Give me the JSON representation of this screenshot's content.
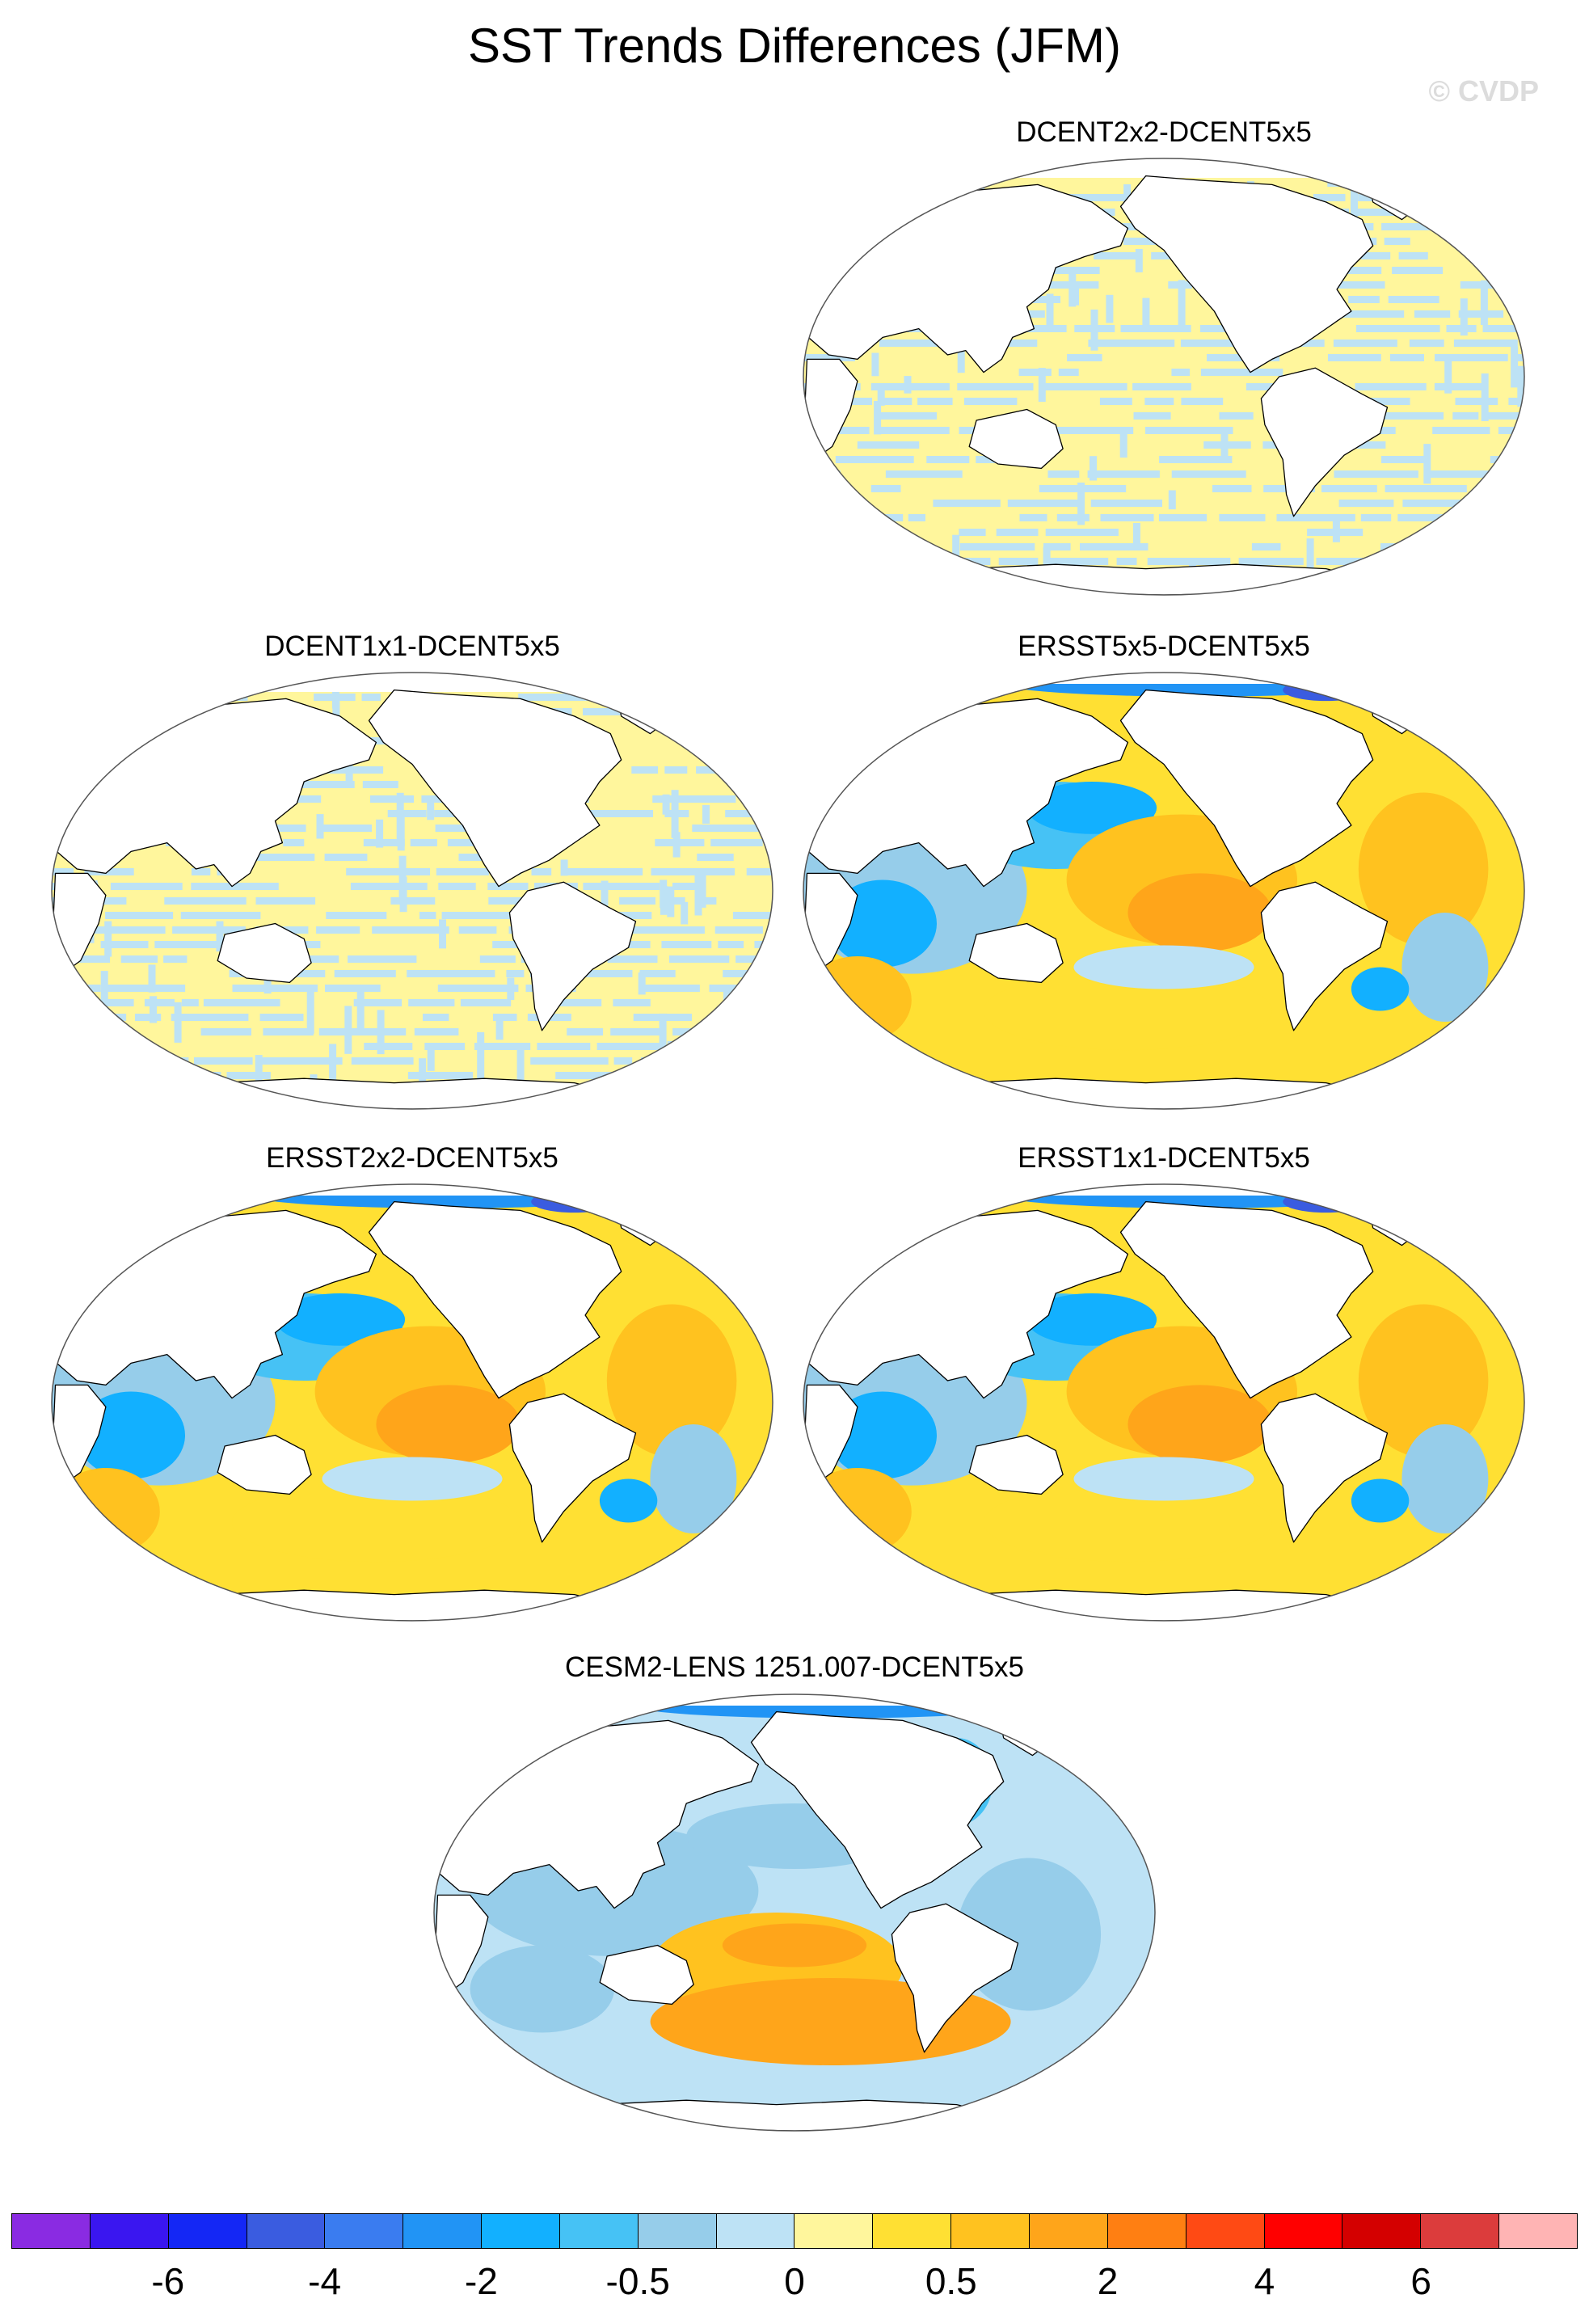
{
  "figure": {
    "title": "SST Trends Differences (JFM)",
    "credit": "© CVDP"
  },
  "panels": [
    {
      "title": "DCENT2x2-DCENT5x5",
      "pattern": "stripes"
    },
    {
      "title": "DCENT1x1-DCENT5x5",
      "pattern": "stripes"
    },
    {
      "title": "ERSST5x5-DCENT5x5",
      "pattern": "ersst"
    },
    {
      "title": "ERSST2x2-DCENT5x5",
      "pattern": "ersst"
    },
    {
      "title": "ERSST1x1-DCENT5x5",
      "pattern": "ersst"
    },
    {
      "title": "CESM2-LENS 1251.007-DCENT5x5",
      "pattern": "cesm"
    }
  ],
  "colorbar": {
    "colors": [
      "#8a2be2",
      "#3a16f0",
      "#1427f5",
      "#3a5ce0",
      "#3a7cf0",
      "#2194f5",
      "#12b0ff",
      "#46c2f5",
      "#96cdea",
      "#bde2f5",
      "#fff69c",
      "#ffe033",
      "#ffc21f",
      "#ffa51a",
      "#ff7f12",
      "#ff4a14",
      "#ff0000",
      "#d40000",
      "#dc3c3c",
      "#ffb4b4"
    ],
    "labels": [
      "-6",
      "-4",
      "-2",
      "-0.5",
      "0",
      "0.5",
      "2",
      "4",
      "6"
    ]
  }
}
